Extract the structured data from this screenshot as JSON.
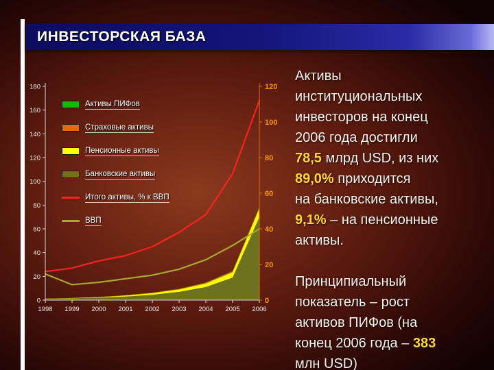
{
  "slide": {
    "title": "ИНВЕСТОРСКАЯ БАЗА"
  },
  "colors": {
    "highlight": "#ffd633",
    "header_blue_start": "#0c0c60",
    "header_blue_end": "#b8b8f4",
    "right_axis_label": "#ff9900",
    "body_text": "#f5f3ee",
    "left_accent": "#ffffff"
  },
  "chart_data": {
    "type": "combo-stacked-area-line",
    "x": [
      "1998",
      "1999",
      "2000",
      "2001",
      "2002",
      "2003",
      "2004",
      "2005",
      "2006"
    ],
    "left_axis": {
      "min": 0,
      "max": 180,
      "step": 20
    },
    "right_axis": {
      "min": 0,
      "max": 120,
      "step": 20
    },
    "grid": false,
    "legend_position": "inside-top-left",
    "stacked_series": [
      {
        "name": "Банковские активы",
        "color": "#6e7220",
        "axis": "left",
        "values": [
          1.2,
          1.5,
          2.0,
          3.0,
          4.5,
          7.0,
          11.0,
          19.0,
          69.9
        ]
      },
      {
        "name": "Пенсионные активы",
        "color": "#ffff00",
        "axis": "left",
        "values": [
          0.0,
          0.2,
          0.4,
          0.8,
          1.3,
          1.9,
          2.9,
          4.3,
          7.1
        ]
      },
      {
        "name": "Страховые активы",
        "color": "#e36c09",
        "axis": "left",
        "values": [
          0.1,
          0.1,
          0.2,
          0.3,
          0.4,
          0.5,
          0.7,
          1.0,
          1.1
        ]
      },
      {
        "name": "Активы ПИФов",
        "color": "#00c000",
        "axis": "left",
        "values": [
          0.0,
          0.0,
          0.0,
          0.0,
          0.05,
          0.1,
          0.15,
          0.25,
          0.4
        ]
      }
    ],
    "line_series": [
      {
        "name": "ВВП",
        "axis": "left",
        "color": "#a8aa30",
        "values": [
          22,
          13,
          15,
          18,
          21,
          26,
          34,
          46,
          60
        ]
      },
      {
        "name": "Итого активы, % к ВВП",
        "axis": "right",
        "color": "#ff2020",
        "values": [
          16,
          18,
          22,
          25,
          30,
          38,
          48,
          71,
          112
        ]
      }
    ],
    "legend": [
      {
        "label": "Активы ПИФов",
        "color": "#00c000",
        "marker": "area"
      },
      {
        "label": "Страховые активы",
        "color": "#e36c09",
        "marker": "area"
      },
      {
        "label": "Пенсионные активы",
        "color": "#ffff00",
        "marker": "area"
      },
      {
        "label": "Банковские активы",
        "color": "#6e7220",
        "marker": "area"
      },
      {
        "label": "Итого активы, % к ВВП",
        "color": "#ff2020",
        "marker": "line"
      },
      {
        "label": "ВВП",
        "color": "#a8aa30",
        "marker": "line"
      }
    ]
  },
  "body_text": {
    "paragraphs": [
      {
        "lines": [
          [
            {
              "t": "Активы",
              "s": "n"
            }
          ],
          [
            {
              "t": "институциональных",
              "s": "n"
            }
          ],
          [
            {
              "t": "инвесторов на конец",
              "s": "n"
            }
          ],
          [
            {
              "t": "2006 года достигли",
              "s": "n"
            }
          ],
          [
            {
              "t": "78,5",
              "s": "h"
            },
            {
              "t": " млрд USD, из них",
              "s": "n"
            }
          ],
          [
            {
              "t": "89,0%",
              "s": "h"
            },
            {
              "t": " приходится",
              "s": "n"
            }
          ],
          [
            {
              "t": "на банковские активы,",
              "s": "n"
            }
          ],
          [
            {
              "t": "9,1%",
              "s": "h"
            },
            {
              "t": " – на пенсионные",
              "s": "n"
            }
          ],
          [
            {
              "t": "активы.",
              "s": "n"
            }
          ]
        ]
      },
      {
        "lines": [
          [
            {
              "t": "Принципиальный",
              "s": "n"
            }
          ],
          [
            {
              "t": "показатель – рост",
              "s": "n"
            }
          ],
          [
            {
              "t": "активов ПИФов (на",
              "s": "n"
            }
          ],
          [
            {
              "t": "конец 2006 года – ",
              "s": "n"
            },
            {
              "t": "383",
              "s": "h"
            }
          ],
          [
            {
              "t": "млн USD)",
              "s": "n"
            }
          ]
        ]
      }
    ]
  }
}
